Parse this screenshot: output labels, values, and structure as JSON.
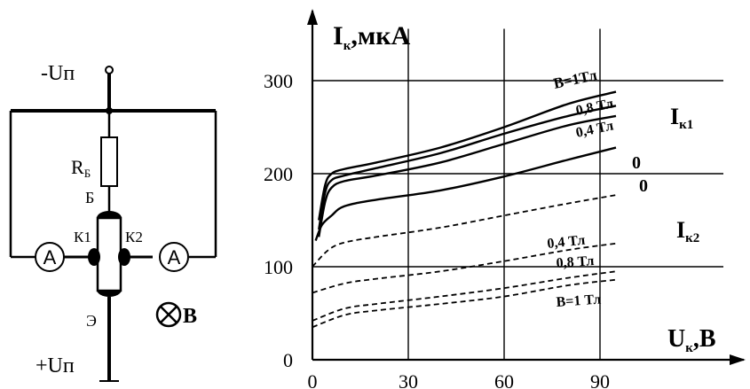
{
  "circuit": {
    "supply_top": "-Uп",
    "supply_bottom": "+Uп",
    "resistor_label_main": "R",
    "resistor_label_sub": "Б",
    "base_label": "Б",
    "collector1_label": "К1",
    "collector2_label": "К2",
    "emitter_label": "Э",
    "ammeter_left": "A",
    "ammeter_right": "A",
    "field_label": "B"
  },
  "chart_data": {
    "type": "line",
    "ylabel": {
      "main": "I",
      "sub": "к",
      "unit": ",мкА"
    },
    "xlabel": {
      "main": "U",
      "sub": "к",
      "unit": ",В"
    },
    "xticks": [
      "0",
      "30",
      "60",
      "90"
    ],
    "yticks": [
      "0",
      "100",
      "200",
      "300"
    ],
    "xlim": [
      0,
      130
    ],
    "ylim": [
      0,
      370
    ],
    "grid": true,
    "group_labels": [
      {
        "main": "I",
        "sub": "к1"
      },
      {
        "main": "I",
        "sub": "к2"
      }
    ],
    "series": [
      {
        "name": "B=1Тл",
        "group": "Iк1",
        "style": "solid",
        "points": [
          [
            2,
            150
          ],
          [
            4,
            188
          ],
          [
            6,
            200
          ],
          [
            10,
            205
          ],
          [
            20,
            212
          ],
          [
            40,
            228
          ],
          [
            60,
            250
          ],
          [
            80,
            275
          ],
          [
            95,
            288
          ]
        ]
      },
      {
        "name": "0,8 Тл",
        "group": "Iк1",
        "style": "solid",
        "points": [
          [
            2,
            140
          ],
          [
            4,
            180
          ],
          [
            6,
            193
          ],
          [
            10,
            198
          ],
          [
            20,
            206
          ],
          [
            40,
            222
          ],
          [
            60,
            243
          ],
          [
            80,
            262
          ],
          [
            95,
            273
          ]
        ]
      },
      {
        "name": "0,4 Тл",
        "group": "Iк1",
        "style": "solid",
        "points": [
          [
            2,
            132
          ],
          [
            4,
            170
          ],
          [
            6,
            185
          ],
          [
            10,
            192
          ],
          [
            20,
            198
          ],
          [
            40,
            212
          ],
          [
            60,
            232
          ],
          [
            80,
            252
          ],
          [
            95,
            262
          ]
        ]
      },
      {
        "name": "0",
        "group": "Iк1",
        "style": "solid",
        "points": [
          [
            1,
            128
          ],
          [
            3,
            145
          ],
          [
            6,
            155
          ],
          [
            10,
            165
          ],
          [
            20,
            172
          ],
          [
            40,
            182
          ],
          [
            60,
            197
          ],
          [
            80,
            215
          ],
          [
            95,
            228
          ]
        ]
      },
      {
        "name": "0",
        "group": "Iк2",
        "style": "dashed",
        "points": [
          [
            0,
            100
          ],
          [
            5,
            118
          ],
          [
            10,
            126
          ],
          [
            20,
            132
          ],
          [
            40,
            142
          ],
          [
            60,
            155
          ],
          [
            80,
            168
          ],
          [
            95,
            177
          ]
        ]
      },
      {
        "name": "0,4 Тл",
        "group": "Iк2",
        "style": "dashed",
        "points": [
          [
            0,
            72
          ],
          [
            10,
            82
          ],
          [
            20,
            87
          ],
          [
            40,
            95
          ],
          [
            60,
            106
          ],
          [
            80,
            118
          ],
          [
            95,
            125
          ]
        ]
      },
      {
        "name": "0,8 Тл",
        "group": "Iк2",
        "style": "dashed",
        "points": [
          [
            0,
            42
          ],
          [
            10,
            55
          ],
          [
            20,
            60
          ],
          [
            40,
            68
          ],
          [
            60,
            77
          ],
          [
            80,
            88
          ],
          [
            95,
            95
          ]
        ]
      },
      {
        "name": "B=1 Тл",
        "group": "Iк2",
        "style": "dashed",
        "points": [
          [
            0,
            35
          ],
          [
            10,
            48
          ],
          [
            20,
            53
          ],
          [
            40,
            60
          ],
          [
            60,
            68
          ],
          [
            80,
            80
          ],
          [
            95,
            86
          ]
        ]
      }
    ],
    "series_labels": [
      {
        "text": "B=1Тл"
      },
      {
        "text": "0,8 Тл"
      },
      {
        "text": "0,4 Тл"
      },
      {
        "text": "0"
      },
      {
        "text": "0"
      },
      {
        "text": "0,4 Тл"
      },
      {
        "text": "0,8 Тл"
      },
      {
        "text": "B=1 Тл"
      }
    ]
  }
}
